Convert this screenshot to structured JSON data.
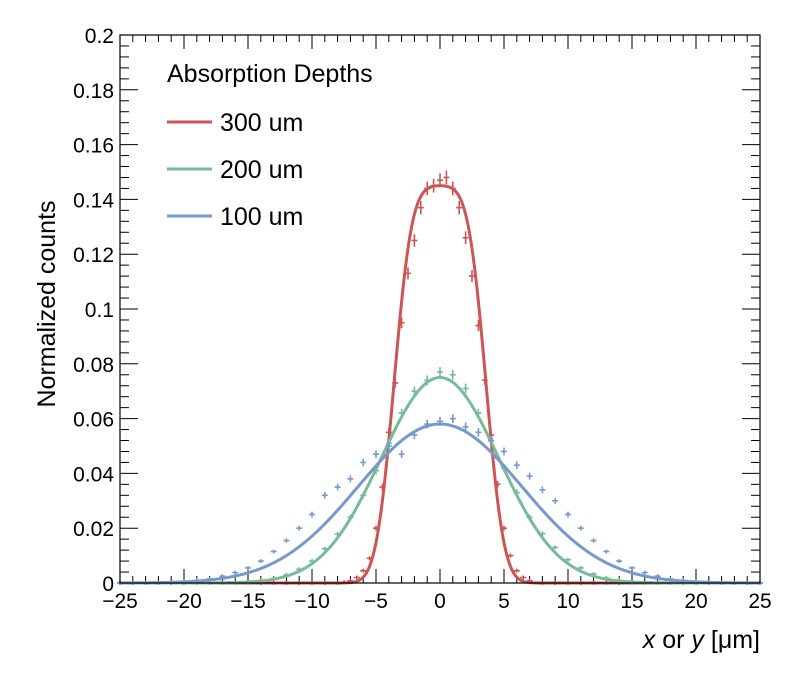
{
  "chart_data": {
    "type": "line",
    "title": "",
    "xlabel_italic_1": "x",
    "xlabel_mid": " or ",
    "xlabel_italic_2": "y",
    "xlabel_unit": " [μm]",
    "ylabel": "Normalized counts",
    "xlim": [
      -25,
      25
    ],
    "ylim": [
      0,
      0.2
    ],
    "xticks": [
      "−25",
      "−20",
      "−15",
      "−10",
      "−5",
      "0",
      "5",
      "10",
      "15",
      "20",
      "25"
    ],
    "yticks": [
      "0",
      "0.02",
      "0.04",
      "0.06",
      "0.08",
      "0.1",
      "0.12",
      "0.14",
      "0.16",
      "0.18",
      "0.2"
    ],
    "legend_title": "Absorption Depths",
    "legend_position": "top-left",
    "series": [
      {
        "name": "300 um",
        "color": "#cc5555",
        "fit": {
          "model": "flat-top",
          "amplitude": 0.145,
          "half_width": 3.6,
          "sigma": 1.1
        },
        "points": [
          [
            -7.5,
            0.0003
          ],
          [
            -7,
            0.0008
          ],
          [
            -6.5,
            0.002
          ],
          [
            -6,
            0.0045
          ],
          [
            -5.5,
            0.009
          ],
          [
            -5,
            0.02
          ],
          [
            -4.5,
            0.035
          ],
          [
            -4,
            0.055
          ],
          [
            -3.5,
            0.073
          ],
          [
            -3,
            0.095
          ],
          [
            -2.5,
            0.113
          ],
          [
            -2,
            0.125
          ],
          [
            -1.5,
            0.137
          ],
          [
            -1,
            0.144
          ],
          [
            -0.5,
            0.145
          ],
          [
            0,
            0.147
          ],
          [
            0.5,
            0.148
          ],
          [
            1,
            0.144
          ],
          [
            1.5,
            0.137
          ],
          [
            2,
            0.126
          ],
          [
            2.5,
            0.112
          ],
          [
            3,
            0.094
          ],
          [
            3.5,
            0.074
          ],
          [
            4,
            0.054
          ],
          [
            4.5,
            0.036
          ],
          [
            5,
            0.02
          ],
          [
            5.5,
            0.01
          ],
          [
            6,
            0.0045
          ],
          [
            6.5,
            0.002
          ],
          [
            7,
            0.0008
          ]
        ]
      },
      {
        "name": "200 um",
        "color": "#77bb99",
        "fit": {
          "model": "gaussian",
          "amplitude": 0.075,
          "mean": 0,
          "sigma": 4.6
        },
        "points": [
          [
            -14,
            0.0009
          ],
          [
            -13,
            0.0016
          ],
          [
            -12,
            0.003
          ],
          [
            -11,
            0.005
          ],
          [
            -10,
            0.008
          ],
          [
            -9,
            0.0125
          ],
          [
            -8,
            0.0178
          ],
          [
            -7,
            0.024
          ],
          [
            -6,
            0.032
          ],
          [
            -5,
            0.041
          ],
          [
            -4,
            0.051
          ],
          [
            -3,
            0.062
          ],
          [
            -2,
            0.07
          ],
          [
            -1,
            0.074
          ],
          [
            0,
            0.077
          ],
          [
            1,
            0.076
          ],
          [
            2,
            0.071
          ],
          [
            3,
            0.062
          ],
          [
            4,
            0.052
          ],
          [
            5,
            0.042
          ],
          [
            6,
            0.033
          ],
          [
            7,
            0.024
          ],
          [
            8,
            0.018
          ],
          [
            9,
            0.013
          ],
          [
            10,
            0.0085
          ],
          [
            11,
            0.0055
          ],
          [
            12,
            0.0033
          ],
          [
            13,
            0.0018
          ],
          [
            14,
            0.001
          ]
        ]
      },
      {
        "name": "100 um",
        "color": "#7799cc",
        "fit": {
          "model": "gaussian",
          "amplitude": 0.058,
          "mean": 0,
          "sigma": 6.4
        },
        "points": [
          [
            -20,
            0.0006
          ],
          [
            -19,
            0.001
          ],
          [
            -18,
            0.0015
          ],
          [
            -17,
            0.0025
          ],
          [
            -16,
            0.0038
          ],
          [
            -15,
            0.0055
          ],
          [
            -14,
            0.008
          ],
          [
            -13,
            0.0115
          ],
          [
            -12,
            0.0155
          ],
          [
            -11,
            0.02
          ],
          [
            -10,
            0.025
          ],
          [
            -9,
            0.032
          ],
          [
            -8,
            0.035
          ],
          [
            -7,
            0.038
          ],
          [
            -6,
            0.044
          ],
          [
            -5,
            0.047
          ],
          [
            -4,
            0.05
          ],
          [
            -3,
            0.047
          ],
          [
            -2,
            0.054
          ],
          [
            -1,
            0.058
          ],
          [
            0,
            0.059
          ],
          [
            1,
            0.06
          ],
          [
            2,
            0.057
          ],
          [
            3,
            0.055
          ],
          [
            4,
            0.052
          ],
          [
            5,
            0.048
          ],
          [
            6,
            0.043
          ],
          [
            7,
            0.039
          ],
          [
            8,
            0.034
          ],
          [
            9,
            0.03
          ],
          [
            10,
            0.025
          ],
          [
            11,
            0.02
          ],
          [
            12,
            0.0155
          ],
          [
            13,
            0.0115
          ],
          [
            14,
            0.008
          ],
          [
            15,
            0.0055
          ],
          [
            16,
            0.0038
          ],
          [
            17,
            0.0025
          ],
          [
            18,
            0.0015
          ],
          [
            19,
            0.001
          ],
          [
            20,
            0.0006
          ]
        ]
      }
    ]
  }
}
